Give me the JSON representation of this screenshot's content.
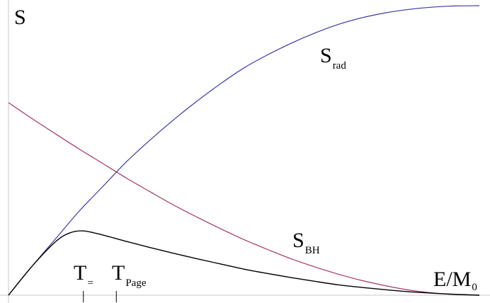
{
  "chart_data": {
    "type": "line",
    "title": "",
    "ylabel": "S",
    "xlabel": {
      "base": "E/M",
      "sub": "0"
    },
    "xlim": [
      0,
      1
    ],
    "ylim": [
      0,
      1
    ],
    "grid": false,
    "legend": "none",
    "x_ticks": [
      {
        "x": 0.159,
        "base": "T",
        "sub": "="
      },
      {
        "x": 0.229,
        "base": "T",
        "sub": "Page"
      }
    ],
    "series": [
      {
        "name": "S_rad",
        "label_base": "S",
        "label_sub": "rad",
        "color": "#3b3b9a",
        "x": [
          0.0,
          0.05,
          0.1,
          0.15,
          0.2,
          0.25,
          0.3,
          0.35,
          0.4,
          0.45,
          0.5,
          0.55,
          0.6,
          0.65,
          0.7,
          0.75,
          0.8,
          0.85,
          0.9,
          0.95,
          1.0
        ],
        "y": [
          0.0,
          0.1,
          0.195,
          0.29,
          0.375,
          0.46,
          0.535,
          0.605,
          0.67,
          0.73,
          0.785,
          0.83,
          0.87,
          0.905,
          0.935,
          0.958,
          0.975,
          0.987,
          0.995,
          0.999,
          1.0
        ]
      },
      {
        "name": "S_BH",
        "label_base": "S",
        "label_sub": "BH",
        "color": "#a0396b",
        "x": [
          0.0,
          0.05,
          0.1,
          0.15,
          0.2,
          0.25,
          0.3,
          0.35,
          0.4,
          0.45,
          0.5,
          0.55,
          0.6,
          0.65,
          0.7,
          0.75,
          0.8,
          0.85,
          0.9,
          0.95,
          1.0
        ],
        "y": [
          0.665,
          0.61,
          0.557,
          0.505,
          0.455,
          0.405,
          0.358,
          0.312,
          0.27,
          0.23,
          0.192,
          0.158,
          0.126,
          0.098,
          0.073,
          0.051,
          0.033,
          0.018,
          0.008,
          0.002,
          0.0
        ]
      },
      {
        "name": "S",
        "color": "#000000",
        "x": [
          0.0,
          0.05,
          0.1,
          0.13,
          0.159,
          0.2,
          0.25,
          0.3,
          0.35,
          0.4,
          0.45,
          0.5,
          0.55,
          0.6,
          0.65,
          0.7,
          0.75,
          0.8,
          0.85,
          0.9,
          0.95,
          1.0
        ],
        "y": [
          0.0,
          0.1,
          0.185,
          0.215,
          0.222,
          0.208,
          0.186,
          0.165,
          0.145,
          0.126,
          0.108,
          0.09,
          0.075,
          0.061,
          0.048,
          0.036,
          0.027,
          0.019,
          0.012,
          0.007,
          0.003,
          0.0
        ]
      }
    ]
  }
}
